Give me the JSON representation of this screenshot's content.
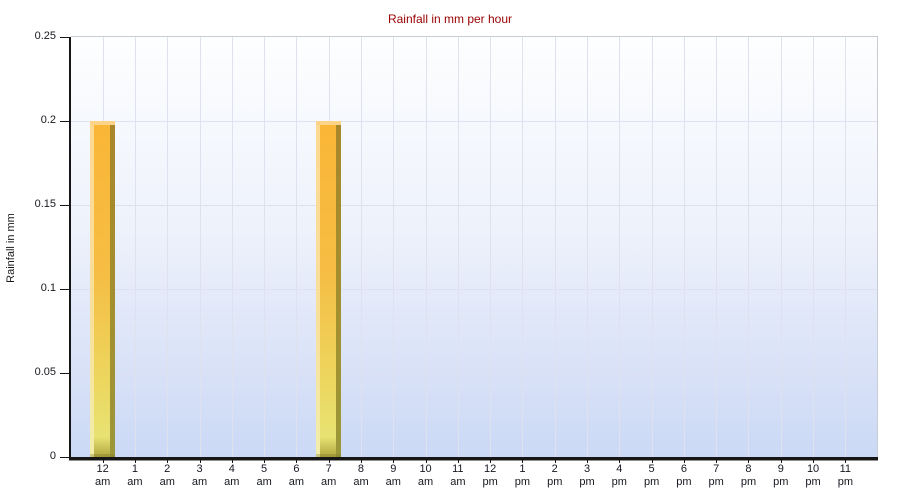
{
  "chart_data": {
    "type": "bar",
    "title": "Rainfall in mm per hour",
    "ylabel": "Rainfall in mm",
    "xlabel": "",
    "categories": [
      "12 am",
      "1 am",
      "2 am",
      "3 am",
      "4 am",
      "5 am",
      "6 am",
      "7 am",
      "8 am",
      "9 am",
      "10 am",
      "11 am",
      "12 pm",
      "1 pm",
      "2 pm",
      "3 pm",
      "4 pm",
      "5 pm",
      "6 pm",
      "7 pm",
      "8 pm",
      "9 pm",
      "10 pm",
      "11 pm"
    ],
    "values": [
      0.2,
      0,
      0,
      0,
      0,
      0,
      0,
      0.2,
      0,
      0,
      0,
      0,
      0,
      0,
      0,
      0,
      0,
      0,
      0,
      0,
      0,
      0,
      0,
      0
    ],
    "ylim": [
      0,
      0.25
    ],
    "ytick_labels": [
      "0",
      "0.05",
      "0.1",
      "0.15",
      "0.2",
      "0.25"
    ],
    "grid": true,
    "legend_position": "none",
    "colors": {
      "title": "#990000",
      "plot_bg_top": "#fdfeff",
      "plot_bg_bottom": "#cbd9f6",
      "gridline": "#dde2ee",
      "axis": "#161616",
      "tick_label": "#17191f",
      "bar_body_top": "#fab636",
      "bar_body_bottom": "#e8e273",
      "bar_base": "#b0a63f",
      "bar_highlight": "#fdd992",
      "bar_shadow": "#a8872a",
      "bar_cap": "#fcd389"
    }
  }
}
